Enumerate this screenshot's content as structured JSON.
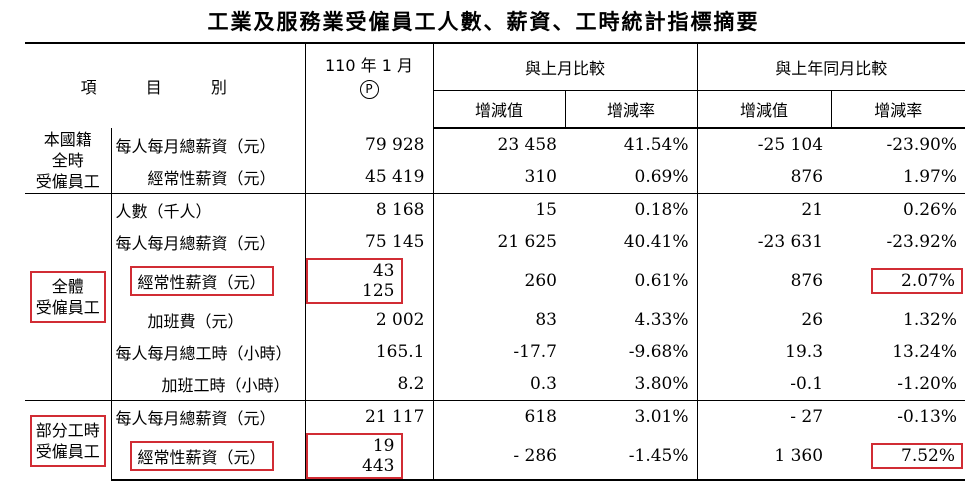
{
  "title": "工業及服務業受僱員工人數、薪資、工時統計指標摘要",
  "header": {
    "item_col": "項 目 別",
    "period": "110 年 1 月",
    "prelim_mark": "P",
    "mom_group": "與上月比較",
    "yoy_group": "與上年同月比較",
    "change_value": "增減值",
    "change_rate": "增減率"
  },
  "groups": {
    "fulltime_domestic": "本國籍\n全時\n受僱員工",
    "all_employees": "全體\n受僱員工",
    "parttime": "部分工時\n受僱員工"
  },
  "rows": [
    {
      "item": "每人每月總薪資（元）",
      "value": "79 928",
      "mom_val": "23 458",
      "mom_rate": "41.54%",
      "yoy_val": "-25 104",
      "yoy_rate": "-23.90%"
    },
    {
      "item": "經常性薪資（元）",
      "value": "45 419",
      "mom_val": "310",
      "mom_rate": "0.69%",
      "yoy_val": "876",
      "yoy_rate": "1.97%"
    },
    {
      "item": "人數（千人）",
      "value": "8 168",
      "mom_val": "15",
      "mom_rate": "0.18%",
      "yoy_val": "21",
      "yoy_rate": "0.26%"
    },
    {
      "item": "每人每月總薪資（元）",
      "value": "75 145",
      "mom_val": "21 625",
      "mom_rate": "40.41%",
      "yoy_val": "-23 631",
      "yoy_rate": "-23.92%"
    },
    {
      "item": "經常性薪資（元）",
      "value": "43 125",
      "mom_val": "260",
      "mom_rate": "0.61%",
      "yoy_val": "876",
      "yoy_rate": "2.07%"
    },
    {
      "item": "加班費（元）",
      "value": "2 002",
      "mom_val": "83",
      "mom_rate": "4.33%",
      "yoy_val": "26",
      "yoy_rate": "1.32%"
    },
    {
      "item": "每人每月總工時（小時）",
      "value": "165.1",
      "mom_val": "-17.7",
      "mom_rate": "-9.68%",
      "yoy_val": "19.3",
      "yoy_rate": "13.24%"
    },
    {
      "item": "加班工時（小時）",
      "value": "8.2",
      "mom_val": "0.3",
      "mom_rate": "3.80%",
      "yoy_val": "-0.1",
      "yoy_rate": "-1.20%"
    },
    {
      "item": "每人每月總薪資（元）",
      "value": "21 117",
      "mom_val": "618",
      "mom_rate": "3.01%",
      "yoy_val": "- 27",
      "yoy_rate": "-0.13%"
    },
    {
      "item": "經常性薪資（元）",
      "value": "19 443",
      "mom_val": "- 286",
      "mom_rate": "-1.45%",
      "yoy_val": "1 360",
      "yoy_rate": "7.52%"
    }
  ],
  "highlight_color": "#d12c34"
}
